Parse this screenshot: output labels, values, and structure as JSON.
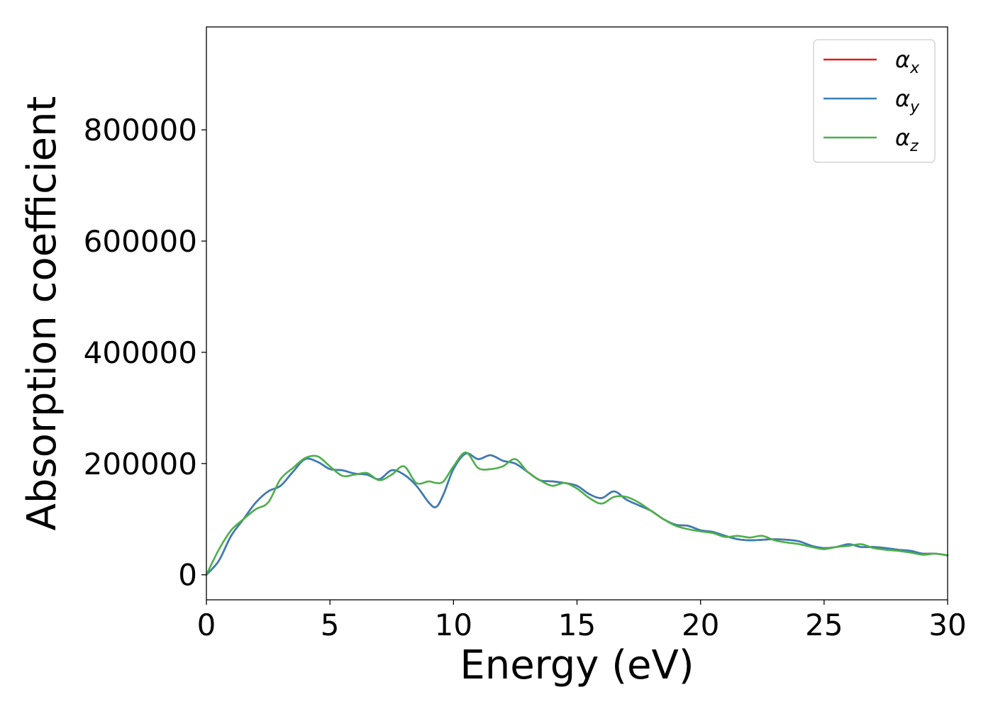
{
  "chart_data": {
    "type": "line",
    "title": "",
    "xlabel": "Energy (eV)",
    "ylabel": "Absorption coefficient",
    "xlim": [
      0,
      30
    ],
    "ylim": [
      -45000,
      985000
    ],
    "xticks": [
      0,
      5,
      10,
      15,
      20,
      25,
      30
    ],
    "yticks": [
      0,
      200000,
      400000,
      600000,
      800000
    ],
    "grid": false,
    "legend_position": "top-right",
    "series": [
      {
        "name": "α_x",
        "symbol": "α",
        "subscript": "x",
        "color": "#e41a1c",
        "x": [
          0,
          0.5,
          1,
          1.5,
          2,
          2.5,
          3,
          3.5,
          4,
          4.5,
          5,
          5.5,
          6,
          6.5,
          7,
          7.5,
          8,
          8.5,
          9,
          9.3,
          9.6,
          10,
          10.5,
          11,
          11.5,
          12,
          12.5,
          13,
          13.5,
          14,
          14.5,
          15,
          15.5,
          16,
          16.5,
          17,
          17.5,
          18,
          18.5,
          19,
          19.5,
          20,
          20.5,
          21,
          21.5,
          22,
          22.5,
          23,
          23.5,
          24,
          24.5,
          25,
          25.5,
          26,
          26.5,
          27,
          27.5,
          28,
          28.5,
          29,
          29.5,
          30
        ],
        "y": [
          0,
          25000,
          70000,
          100000,
          130000,
          150000,
          160000,
          185000,
          208000,
          203000,
          190000,
          188000,
          182000,
          180000,
          172000,
          188000,
          180000,
          160000,
          130000,
          122000,
          145000,
          190000,
          218000,
          208000,
          215000,
          205000,
          200000,
          185000,
          170000,
          168000,
          165000,
          160000,
          145000,
          138000,
          150000,
          135000,
          125000,
          115000,
          100000,
          90000,
          88000,
          80000,
          77000,
          70000,
          64000,
          62000,
          63000,
          64000,
          63000,
          60000,
          52000,
          48000,
          50000,
          55000,
          50000,
          50000,
          48000,
          45000,
          43000,
          38000,
          38000,
          35000
        ]
      },
      {
        "name": "α_y",
        "symbol": "α",
        "subscript": "y",
        "color": "#377eb8",
        "x": [
          0,
          0.5,
          1,
          1.5,
          2,
          2.5,
          3,
          3.5,
          4,
          4.5,
          5,
          5.5,
          6,
          6.5,
          7,
          7.5,
          8,
          8.5,
          9,
          9.3,
          9.6,
          10,
          10.5,
          11,
          11.5,
          12,
          12.5,
          13,
          13.5,
          14,
          14.5,
          15,
          15.5,
          16,
          16.5,
          17,
          17.5,
          18,
          18.5,
          19,
          19.5,
          20,
          20.5,
          21,
          21.5,
          22,
          22.5,
          23,
          23.5,
          24,
          24.5,
          25,
          25.5,
          26,
          26.5,
          27,
          27.5,
          28,
          28.5,
          29,
          29.5,
          30
        ],
        "y": [
          0,
          25000,
          70000,
          100000,
          130000,
          150000,
          160000,
          185000,
          208000,
          203000,
          190000,
          188000,
          182000,
          180000,
          172000,
          188000,
          180000,
          160000,
          130000,
          122000,
          145000,
          190000,
          218000,
          208000,
          215000,
          205000,
          200000,
          185000,
          170000,
          168000,
          165000,
          160000,
          145000,
          138000,
          150000,
          135000,
          125000,
          115000,
          100000,
          90000,
          88000,
          80000,
          77000,
          70000,
          64000,
          62000,
          63000,
          64000,
          63000,
          60000,
          52000,
          48000,
          50000,
          55000,
          50000,
          50000,
          48000,
          45000,
          43000,
          38000,
          38000,
          35000
        ]
      },
      {
        "name": "α_z",
        "symbol": "α",
        "subscript": "z",
        "color": "#4daf4a",
        "x": [
          0,
          0.5,
          1,
          1.5,
          2,
          2.5,
          3,
          3.5,
          4,
          4.5,
          5,
          5.5,
          6,
          6.5,
          7,
          7.5,
          8,
          8.5,
          9,
          9.3,
          9.6,
          10,
          10.5,
          11,
          11.5,
          12,
          12.5,
          13,
          13.5,
          14,
          14.5,
          15,
          15.5,
          16,
          16.5,
          17,
          17.5,
          18,
          18.5,
          19,
          19.5,
          20,
          20.5,
          21,
          21.5,
          22,
          22.5,
          23,
          23.5,
          24,
          24.5,
          25,
          25.5,
          26,
          26.5,
          27,
          27.5,
          28,
          28.5,
          29,
          29.5,
          30
        ],
        "y": [
          0,
          45000,
          80000,
          100000,
          118000,
          130000,
          172000,
          192000,
          210000,
          213000,
          195000,
          178000,
          180000,
          183000,
          170000,
          180000,
          195000,
          165000,
          168000,
          165000,
          168000,
          195000,
          220000,
          192000,
          190000,
          195000,
          208000,
          185000,
          170000,
          160000,
          165000,
          155000,
          138000,
          128000,
          140000,
          140000,
          130000,
          115000,
          100000,
          88000,
          82000,
          78000,
          75000,
          68000,
          70000,
          67000,
          70000,
          62000,
          58000,
          55000,
          50000,
          46000,
          50000,
          52000,
          55000,
          48000,
          45000,
          43000,
          40000,
          36000,
          38000,
          35000
        ]
      }
    ]
  }
}
